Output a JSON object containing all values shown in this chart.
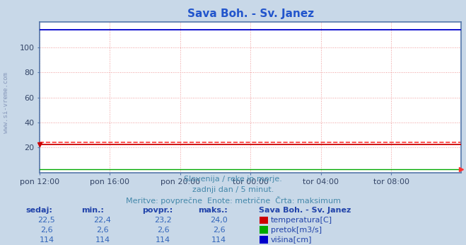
{
  "title": "Sava Boh. - Sv. Janez",
  "title_color": "#2255cc",
  "fig_bg_color": "#c8d8e8",
  "plot_bg_color": "#ffffff",
  "grid_color": "#ee9999",
  "grid_style": ":",
  "border_color": "#5577aa",
  "x_tick_labels": [
    "pon 12:00",
    "pon 16:00",
    "pon 20:00",
    "tor 00:00",
    "tor 04:00",
    "tor 08:00"
  ],
  "x_tick_positions": [
    0,
    48,
    96,
    144,
    192,
    240
  ],
  "n_points": 289,
  "ylim": [
    0,
    120
  ],
  "yticks": [
    20,
    40,
    60,
    80,
    100
  ],
  "temp_base": 22.5,
  "temp_max": 24.0,
  "flow_base": 2.6,
  "flow_max": 2.6,
  "height_base": 114.0,
  "height_max": 114.0,
  "temp_color": "#cc0000",
  "flow_color": "#00aa00",
  "height_color": "#0000cc",
  "max_line_color": "#ff3333",
  "tick_color": "#334466",
  "subtitle1": "Slovenija / reke in morje.",
  "subtitle2": "zadnji dan / 5 minut.",
  "subtitle3": "Meritve: povprečne  Enote: metrične  Črta: maksimum",
  "subtitle_color": "#4488aa",
  "table_header_color": "#2244aa",
  "table_data_color": "#3366bb",
  "label_sedaj": "sedaj:",
  "label_min": "min.:",
  "label_povpr": "povpr.:",
  "label_maks": "maks.:",
  "legend_title": "Sava Boh. - Sv. Janez",
  "legend_temp": "temperatura[C]",
  "legend_flow": "pretok[m3/s]",
  "legend_height": "višina[cm]",
  "watermark": "www.si-vreme.com",
  "watermark_color": "#8899bb",
  "temp_sedaj": "22,5",
  "temp_min_v": "22,4",
  "temp_avg_v": "23,2",
  "temp_max_v": "24,0",
  "flow_sedaj": "2,6",
  "flow_min_v": "2,6",
  "flow_avg_v": "2,6",
  "flow_max_v": "2,6",
  "height_sedaj": "114",
  "height_min_v": "114",
  "height_avg_v": "114",
  "height_max_v": "114"
}
